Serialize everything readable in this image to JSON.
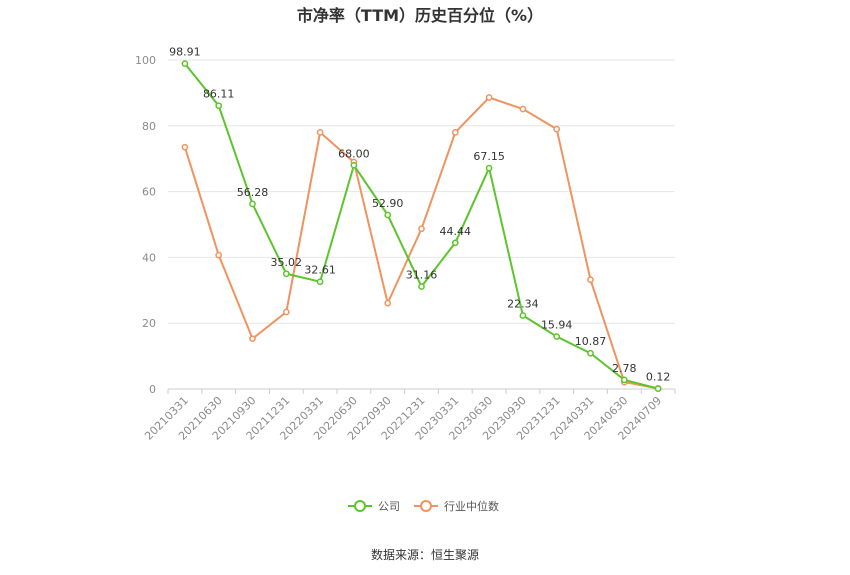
{
  "chart_data": {
    "type": "line",
    "title": "市净率（TTM）历史百分位（%）",
    "categories": [
      "20210331",
      "20210630",
      "20210930",
      "20211231",
      "20220331",
      "20220630",
      "20220930",
      "20221231",
      "20230331",
      "20230630",
      "20230930",
      "20231231",
      "20240331",
      "20240630",
      "20240709"
    ],
    "ylim": [
      0,
      100
    ],
    "yticks": [
      0,
      20,
      40,
      60,
      80,
      100
    ],
    "grid": true,
    "legend_position": "bottom",
    "series": [
      {
        "name": "公司",
        "color": "#5cc52b",
        "values": [
          98.91,
          86.11,
          56.28,
          35.02,
          32.61,
          68.0,
          52.9,
          31.16,
          44.44,
          67.15,
          22.34,
          15.94,
          10.87,
          2.78,
          0.12
        ],
        "labels": [
          "98.91",
          "86.11",
          "56.28",
          "35.02",
          "32.61",
          "68.00",
          "52.90",
          "31.16",
          "44.44",
          "67.15",
          "22.34",
          "15.94",
          "10.87",
          "2.78",
          "0.12"
        ]
      },
      {
        "name": "行业中位数",
        "color": "#f0935f",
        "values": [
          73.5,
          40.7,
          15.3,
          23.4,
          78.0,
          69.0,
          26.1,
          48.7,
          78.0,
          88.6,
          85.1,
          79.0,
          33.2,
          2.1,
          0.2
        ]
      }
    ]
  },
  "source": "数据来源：恒生聚源"
}
